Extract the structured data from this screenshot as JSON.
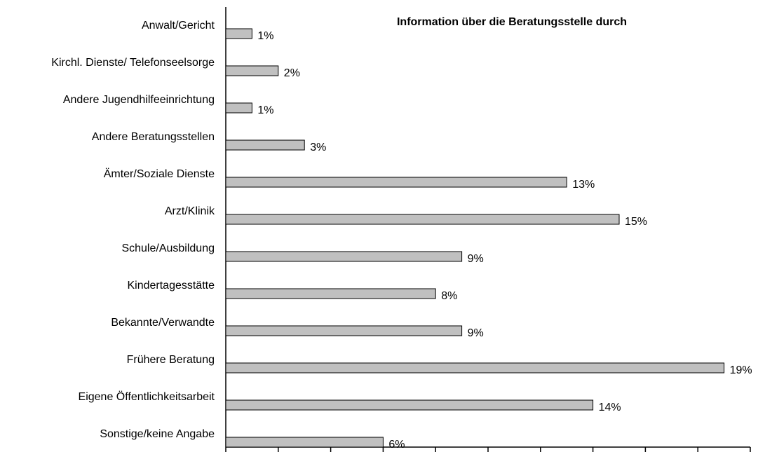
{
  "chart_data": {
    "type": "bar",
    "orientation": "horizontal",
    "title": "Information über die Beratungsstelle durch",
    "categories": [
      "Anwalt/Gericht",
      "Kirchl. Dienste/ Telefonseelsorge",
      "Andere Jugendhilfeeinrichtung",
      "Andere Beratungsstellen",
      "Ämter/Soziale Dienste",
      "Arzt/Klinik",
      "Schule/Ausbildung",
      "Kindertagesstätte",
      "Bekannte/Verwandte",
      "Frühere Beratung",
      "Eigene Öffentlichkeitsarbeit",
      "Sonstige/keine Angabe"
    ],
    "values": [
      1,
      2,
      1,
      3,
      13,
      15,
      9,
      8,
      9,
      19,
      14,
      6
    ],
    "value_labels": [
      "1%",
      "2%",
      "1%",
      "3%",
      "13%",
      "15%",
      "9%",
      "8%",
      "9%",
      "19%",
      "14%",
      "6%"
    ],
    "color": "#c0c0c0",
    "xlim": [
      0,
      20
    ],
    "xticks": [
      0,
      2,
      4,
      6,
      8,
      10,
      12,
      14,
      16,
      18,
      20
    ]
  }
}
